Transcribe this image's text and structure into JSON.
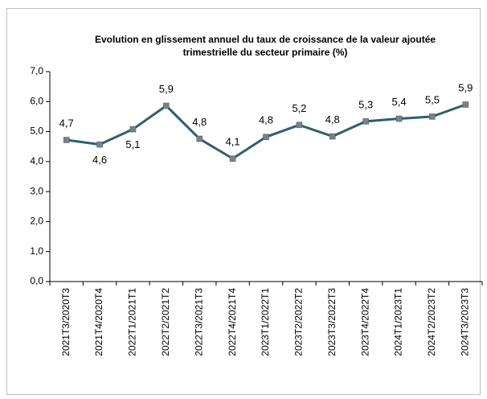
{
  "chart_data": {
    "type": "line",
    "title": [
      "Evolution en glissement annuel du taux de croissance de la valeur ajoutée",
      "trimestrielle du secteur primaire (%)"
    ],
    "categories": [
      "2021T3/2020T3",
      "2021T4/2020T4",
      "2022T1/2021T1",
      "2022T2/2021T2",
      "2022T3/2021T3",
      "2022T4/2021T4",
      "2023T1/2022T1",
      "2023T2/2022T2",
      "2023T3/2022T3",
      "2023T4/2022T4",
      "2024T1/2023T1",
      "2024T2/2023T2",
      "2024T3/2023T3"
    ],
    "series": [
      {
        "name": "Taux",
        "color": "#2f5f6e",
        "values": [
          4.72,
          4.57,
          5.08,
          5.86,
          4.76,
          4.1,
          4.82,
          5.22,
          4.84,
          5.34,
          5.43,
          5.5,
          5.9
        ],
        "value_labels": [
          "4,7",
          "4,6",
          "5,1",
          "5,9",
          "4,8",
          "4,1",
          "4,8",
          "5,2",
          "4,8",
          "5,3",
          "5,4",
          "5,5",
          "5,9"
        ]
      }
    ],
    "marker_color": "#808080",
    "ylim": [
      0,
      7
    ],
    "yticks": [
      {
        "value": 0,
        "label": "0,0"
      },
      {
        "value": 1,
        "label": "1,0"
      },
      {
        "value": 2,
        "label": "2,0"
      },
      {
        "value": 3,
        "label": "3,0"
      },
      {
        "value": 4,
        "label": "4,0"
      },
      {
        "value": 5,
        "label": "5,0"
      },
      {
        "value": 6,
        "label": "6,0"
      },
      {
        "value": 7,
        "label": "7,0"
      }
    ]
  }
}
